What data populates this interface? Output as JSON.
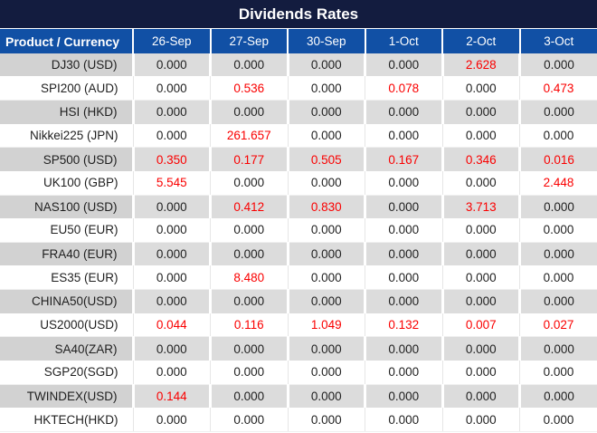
{
  "title": "Dividends Rates",
  "colors": {
    "title_bg": "#131C3F",
    "header_bg": "#1150A5",
    "label_gray": "#D2D2D2",
    "row_gray": "#DCDCDC",
    "text": "#1F1F1F",
    "red": "#FA0000"
  },
  "table": {
    "header": [
      "Product / Currency",
      "26-Sep",
      "27-Sep",
      "30-Sep",
      "1-Oct",
      "2-Oct",
      "3-Oct"
    ],
    "rows": [
      {
        "label": "DJ30 (USD)",
        "values": [
          "0.000",
          "0.000",
          "0.000",
          "0.000",
          "2.628",
          "0.000"
        ],
        "red": [
          4
        ]
      },
      {
        "label": "SPI200 (AUD)",
        "values": [
          "0.000",
          "0.536",
          "0.000",
          "0.078",
          "0.000",
          "0.473"
        ],
        "red": [
          1,
          3,
          5
        ]
      },
      {
        "label": "HSI (HKD)",
        "values": [
          "0.000",
          "0.000",
          "0.000",
          "0.000",
          "0.000",
          "0.000"
        ],
        "red": []
      },
      {
        "label": "Nikkei225 (JPN)",
        "values": [
          "0.000",
          "261.657",
          "0.000",
          "0.000",
          "0.000",
          "0.000"
        ],
        "red": [
          1
        ]
      },
      {
        "label": "SP500 (USD)",
        "values": [
          "0.350",
          "0.177",
          "0.505",
          "0.167",
          "0.346",
          "0.016"
        ],
        "red": [
          0,
          1,
          2,
          3,
          4,
          5
        ]
      },
      {
        "label": "UK100 (GBP)",
        "values": [
          "5.545",
          "0.000",
          "0.000",
          "0.000",
          "0.000",
          "2.448"
        ],
        "red": [
          0,
          5
        ]
      },
      {
        "label": "NAS100 (USD)",
        "values": [
          "0.000",
          "0.412",
          "0.830",
          "0.000",
          "3.713",
          "0.000"
        ],
        "red": [
          1,
          2,
          4
        ]
      },
      {
        "label": "EU50 (EUR)",
        "values": [
          "0.000",
          "0.000",
          "0.000",
          "0.000",
          "0.000",
          "0.000"
        ],
        "red": []
      },
      {
        "label": "FRA40 (EUR)",
        "values": [
          "0.000",
          "0.000",
          "0.000",
          "0.000",
          "0.000",
          "0.000"
        ],
        "red": []
      },
      {
        "label": "ES35 (EUR)",
        "values": [
          "0.000",
          "8.480",
          "0.000",
          "0.000",
          "0.000",
          "0.000"
        ],
        "red": [
          1
        ]
      },
      {
        "label": "CHINA50(USD)",
        "values": [
          "0.000",
          "0.000",
          "0.000",
          "0.000",
          "0.000",
          "0.000"
        ],
        "red": []
      },
      {
        "label": "US2000(USD)",
        "values": [
          "0.044",
          "0.116",
          "1.049",
          "0.132",
          "0.007",
          "0.027"
        ],
        "red": [
          0,
          1,
          2,
          3,
          4,
          5
        ]
      },
      {
        "label": "SA40(ZAR)",
        "values": [
          "0.000",
          "0.000",
          "0.000",
          "0.000",
          "0.000",
          "0.000"
        ],
        "red": []
      },
      {
        "label": "SGP20(SGD)",
        "values": [
          "0.000",
          "0.000",
          "0.000",
          "0.000",
          "0.000",
          "0.000"
        ],
        "red": []
      },
      {
        "label": "TWINDEX(USD)",
        "values": [
          "0.144",
          "0.000",
          "0.000",
          "0.000",
          "0.000",
          "0.000"
        ],
        "red": [
          0
        ]
      },
      {
        "label": "HKTECH(HKD)",
        "values": [
          "0.000",
          "0.000",
          "0.000",
          "0.000",
          "0.000",
          "0.000"
        ],
        "red": []
      }
    ]
  },
  "chart_data": {
    "type": "table",
    "title": "Dividends Rates",
    "columns": [
      "Product / Currency",
      "26-Sep",
      "27-Sep",
      "30-Sep",
      "1-Oct",
      "2-Oct",
      "3-Oct"
    ],
    "rows": [
      [
        "DJ30 (USD)",
        0.0,
        0.0,
        0.0,
        0.0,
        2.628,
        0.0
      ],
      [
        "SPI200 (AUD)",
        0.0,
        0.536,
        0.0,
        0.078,
        0.0,
        0.473
      ],
      [
        "HSI (HKD)",
        0.0,
        0.0,
        0.0,
        0.0,
        0.0,
        0.0
      ],
      [
        "Nikkei225 (JPN)",
        0.0,
        261.657,
        0.0,
        0.0,
        0.0,
        0.0
      ],
      [
        "SP500 (USD)",
        0.35,
        0.177,
        0.505,
        0.167,
        0.346,
        0.016
      ],
      [
        "UK100 (GBP)",
        5.545,
        0.0,
        0.0,
        0.0,
        0.0,
        2.448
      ],
      [
        "NAS100 (USD)",
        0.0,
        0.412,
        0.83,
        0.0,
        3.713,
        0.0
      ],
      [
        "EU50 (EUR)",
        0.0,
        0.0,
        0.0,
        0.0,
        0.0,
        0.0
      ],
      [
        "FRA40 (EUR)",
        0.0,
        0.0,
        0.0,
        0.0,
        0.0,
        0.0
      ],
      [
        "ES35 (EUR)",
        0.0,
        8.48,
        0.0,
        0.0,
        0.0,
        0.0
      ],
      [
        "CHINA50(USD)",
        0.0,
        0.0,
        0.0,
        0.0,
        0.0,
        0.0
      ],
      [
        "US2000(USD)",
        0.044,
        0.116,
        1.049,
        0.132,
        0.007,
        0.027
      ],
      [
        "SA40(ZAR)",
        0.0,
        0.0,
        0.0,
        0.0,
        0.0,
        0.0
      ],
      [
        "SGP20(SGD)",
        0.0,
        0.0,
        0.0,
        0.0,
        0.0,
        0.0
      ],
      [
        "TWINDEX(USD)",
        0.144,
        0.0,
        0.0,
        0.0,
        0.0,
        0.0
      ],
      [
        "HKTECH(HKD)",
        0.0,
        0.0,
        0.0,
        0.0,
        0.0,
        0.0
      ]
    ],
    "notes": "Red-highlighted cells indicated by table.rows[].red index arrays; layout alternates gray/white row banding starting gray."
  }
}
